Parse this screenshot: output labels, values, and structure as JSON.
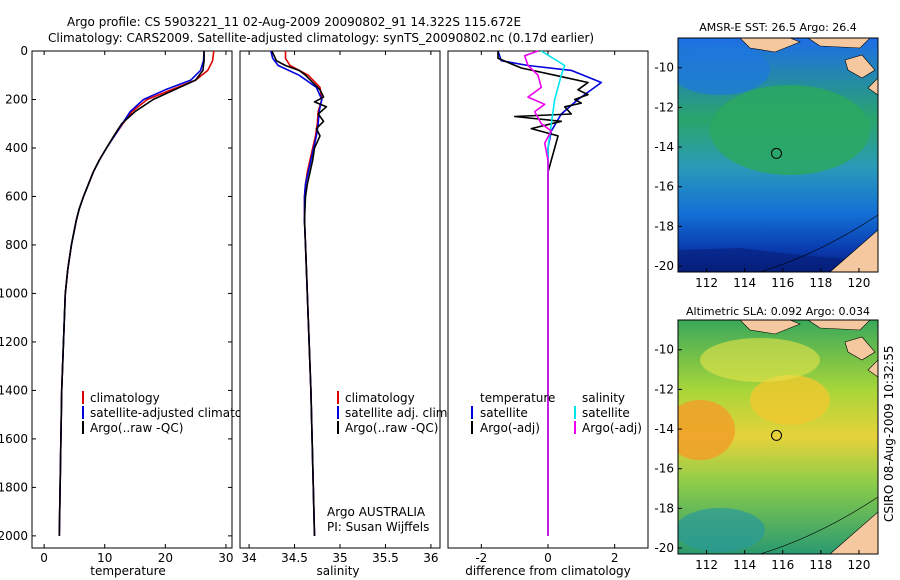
{
  "title": {
    "line1": "Argo profile: CS 5903221_11 02-Aug-2009 20090802_91 14.322S 115.672E",
    "line2": "Climatology: CARS2009. Satellite-adjusted climatology: synTS_20090802.nc (0.17d earlier)"
  },
  "side_label": "CSIRO 08-Aug-2009 10:32:55",
  "colors": {
    "climatology": "#dd0000",
    "satellite": "#0000dd",
    "argo": "#000000",
    "satellite_salinity": "#00e5ee",
    "argo_salinity": "#ee00ee",
    "land": "#f6c8a0"
  },
  "chart_data": [
    {
      "id": "temperature",
      "type": "line",
      "xlabel": "temperature",
      "xlim": [
        -2,
        31
      ],
      "ylim": [
        0,
        2050
      ],
      "y_reversed": true,
      "xticks": [
        0,
        10,
        20,
        30
      ],
      "xtick_labels": [
        "0",
        "10",
        "20",
        "30"
      ],
      "yticks": [
        0,
        200,
        400,
        600,
        800,
        1000,
        1200,
        1400,
        1600,
        1800,
        2000
      ],
      "ytick_labels": [
        "0",
        "200",
        "400",
        "600",
        "800",
        "1000",
        "1200",
        "1400",
        "1600",
        "1800",
        "2000"
      ],
      "legend": [
        "climatology",
        "satellite-adjusted climatology",
        "Argo(..raw -QC)"
      ],
      "legend_position": "lower-right",
      "series": [
        {
          "name": "climatology",
          "color_key": "climatology",
          "x": [
            28.0,
            27.8,
            27.0,
            25.0,
            21.0,
            17.0,
            14.5,
            13.0,
            11.6,
            10.3,
            9.1,
            8.1,
            7.3,
            6.5,
            5.8,
            5.3,
            4.5,
            3.9,
            3.5,
            3.2,
            2.9,
            2.7,
            2.5
          ],
          "y": [
            0,
            40,
            80,
            120,
            160,
            200,
            250,
            300,
            350,
            400,
            450,
            500,
            550,
            600,
            650,
            700,
            800,
            900,
            1000,
            1200,
            1400,
            1700,
            2000
          ]
        },
        {
          "name": "satellite-adjusted climatology",
          "color_key": "satellite",
          "x": [
            26.4,
            26.3,
            25.8,
            24.2,
            20.0,
            16.4,
            14.2,
            12.9,
            11.6,
            10.3,
            9.1,
            8.1,
            7.3,
            6.5,
            5.8,
            5.3,
            4.5,
            3.9,
            3.5,
            3.2,
            2.9,
            2.7,
            2.5
          ],
          "y": [
            0,
            40,
            80,
            120,
            160,
            200,
            250,
            300,
            350,
            400,
            450,
            500,
            550,
            600,
            650,
            700,
            800,
            900,
            1000,
            1200,
            1400,
            1700,
            2000
          ]
        },
        {
          "name": "Argo(..raw -QC)",
          "color_key": "argo",
          "x": [
            26.4,
            26.4,
            26.2,
            25.0,
            21.5,
            18.0,
            15.0,
            12.8,
            11.5,
            10.3,
            9.1,
            8.1,
            7.3,
            6.5,
            5.8,
            5.3,
            4.5,
            3.9,
            3.5,
            3.2,
            2.9,
            2.7,
            2.5
          ],
          "y": [
            0,
            40,
            80,
            120,
            160,
            200,
            250,
            300,
            350,
            400,
            450,
            500,
            550,
            600,
            650,
            700,
            800,
            900,
            1000,
            1200,
            1400,
            1700,
            2000
          ]
        }
      ]
    },
    {
      "id": "salinity",
      "type": "line",
      "xlabel": "salinity",
      "xlim": [
        33.9,
        36.1
      ],
      "ylim": [
        0,
        2050
      ],
      "y_reversed": true,
      "xticks": [
        34,
        34.5,
        35,
        35.5,
        36
      ],
      "xtick_labels": [
        "34",
        "34.5",
        "35",
        "35.5",
        "36"
      ],
      "legend": [
        "climatology",
        "satellite adj. clim.",
        "Argo(..raw -QC)"
      ],
      "legend_position": "lower-right",
      "annotation": [
        "Argo AUSTRALIA",
        "PI: Susan Wijffels"
      ],
      "series": [
        {
          "name": "climatology",
          "color_key": "climatology",
          "x": [
            34.4,
            34.4,
            34.45,
            34.65,
            34.78,
            34.8,
            34.76,
            34.75,
            34.73,
            34.7,
            34.67,
            34.64,
            34.62,
            34.61,
            34.61,
            34.62,
            34.64,
            34.66,
            34.68,
            34.7,
            34.72
          ],
          "y": [
            0,
            30,
            60,
            100,
            150,
            200,
            250,
            300,
            350,
            400,
            450,
            500,
            550,
            600,
            700,
            800,
            1000,
            1200,
            1400,
            1700,
            2000
          ]
        },
        {
          "name": "satellite adj. clim.",
          "color_key": "satellite",
          "x": [
            34.24,
            34.26,
            34.32,
            34.55,
            34.74,
            34.8,
            34.77,
            34.76,
            34.74,
            34.71,
            34.68,
            34.65,
            34.62,
            34.61,
            34.61,
            34.62,
            34.64,
            34.66,
            34.68,
            34.7,
            34.72
          ],
          "y": [
            0,
            30,
            60,
            100,
            150,
            200,
            250,
            300,
            350,
            400,
            450,
            500,
            550,
            600,
            700,
            800,
            1000,
            1200,
            1400,
            1700,
            2000
          ]
        },
        {
          "name": "Argo(..raw -QC)",
          "color_key": "argo",
          "x": [
            34.25,
            34.27,
            34.3,
            34.4,
            34.55,
            34.62,
            34.7,
            34.78,
            34.82,
            34.72,
            34.85,
            34.76,
            34.82,
            34.74,
            34.78,
            34.72,
            34.7,
            34.67,
            34.64,
            34.62,
            34.61,
            34.62,
            34.64,
            34.66,
            34.68,
            34.7,
            34.72
          ],
          "y": [
            0,
            15,
            40,
            60,
            80,
            100,
            130,
            160,
            190,
            210,
            230,
            260,
            290,
            320,
            350,
            400,
            450,
            500,
            550,
            600,
            700,
            800,
            1000,
            1200,
            1400,
            1700,
            2000
          ]
        }
      ]
    },
    {
      "id": "difference",
      "type": "line",
      "xlabel": "difference from climatology",
      "xlim": [
        -3,
        3
      ],
      "ylim": [
        0,
        2050
      ],
      "y_reversed": true,
      "xticks": [
        -2,
        0,
        2
      ],
      "xtick_labels": [
        "-2",
        "0",
        "2"
      ],
      "legend_headers": [
        "temperature",
        "salinity"
      ],
      "legend": [
        "satellite",
        "Argo(-adj)",
        "satellite",
        "Argo(-adj)"
      ],
      "legend_position": "lower-center",
      "series": [
        {
          "name": "temperature satellite",
          "color_key": "satellite",
          "x": [
            -1.5,
            -1.4,
            -0.6,
            0.7,
            1.6,
            0.9,
            0.4,
            0.1,
            0.0,
            0.0,
            0.0,
            0.0
          ],
          "y": [
            0,
            40,
            60,
            80,
            130,
            200,
            260,
            330,
            400,
            600,
            1000,
            2000
          ]
        },
        {
          "name": "temperature Argo(-adj)",
          "color_key": "argo",
          "x": [
            -1.5,
            -1.5,
            -0.8,
            0.2,
            1.2,
            0.9,
            1.2,
            0.8,
            1.0,
            0.5,
            0.7,
            -1.0,
            0.4,
            -0.5,
            0.3,
            0.2,
            0.1,
            0.0,
            0.0,
            0.0
          ],
          "y": [
            0,
            30,
            70,
            100,
            130,
            160,
            180,
            200,
            215,
            230,
            260,
            270,
            290,
            320,
            350,
            400,
            450,
            500,
            1000,
            2000
          ]
        },
        {
          "name": "salinity satellite",
          "color_key": "satellite_salinity",
          "x": [
            -0.2,
            0.5,
            0.4,
            0.2,
            0.1,
            0.0,
            0.0,
            0.0,
            0.0,
            0.0
          ],
          "y": [
            0,
            60,
            100,
            200,
            300,
            400,
            600,
            1000,
            1500,
            2000
          ]
        },
        {
          "name": "salinity Argo(-adj)",
          "color_key": "argo_salinity",
          "x": [
            -0.3,
            -0.7,
            -0.6,
            -0.3,
            -0.2,
            -0.6,
            -0.1,
            -0.4,
            -0.2,
            0.1,
            -0.1,
            0.0,
            0.0,
            0.0
          ],
          "y": [
            0,
            20,
            60,
            100,
            150,
            190,
            220,
            250,
            300,
            330,
            380,
            450,
            1000,
            2000
          ]
        }
      ]
    },
    {
      "id": "sst-map",
      "type": "heatmap",
      "title": "AMSR-E SST: 26.5 Argo: 26.4",
      "xlim": [
        110.5,
        121
      ],
      "ylim": [
        -20.3,
        -8.5
      ],
      "xticks": [
        112,
        114,
        116,
        118,
        120
      ],
      "xtick_labels": [
        "112",
        "114",
        "116",
        "118",
        "120"
      ],
      "yticks": [
        -10,
        -12,
        -14,
        -16,
        -18,
        -20
      ],
      "ytick_labels": [
        "-10",
        "-12",
        "-14",
        "-16",
        "-18",
        "-20"
      ],
      "marker": {
        "lon": 115.67,
        "lat": -14.32
      }
    },
    {
      "id": "sla-map",
      "type": "heatmap",
      "title": "Altimetric SLA: 0.092 Argo: 0.034",
      "xlim": [
        110.5,
        121
      ],
      "ylim": [
        -20.3,
        -8.5
      ],
      "xticks": [
        112,
        114,
        116,
        118,
        120
      ],
      "xtick_labels": [
        "112",
        "114",
        "116",
        "118",
        "120"
      ],
      "yticks": [
        -10,
        -12,
        -14,
        -16,
        -18,
        -20
      ],
      "ytick_labels": [
        "-10",
        "-12",
        "-14",
        "-16",
        "-18",
        "-20"
      ],
      "marker": {
        "lon": 115.67,
        "lat": -14.32
      }
    }
  ]
}
